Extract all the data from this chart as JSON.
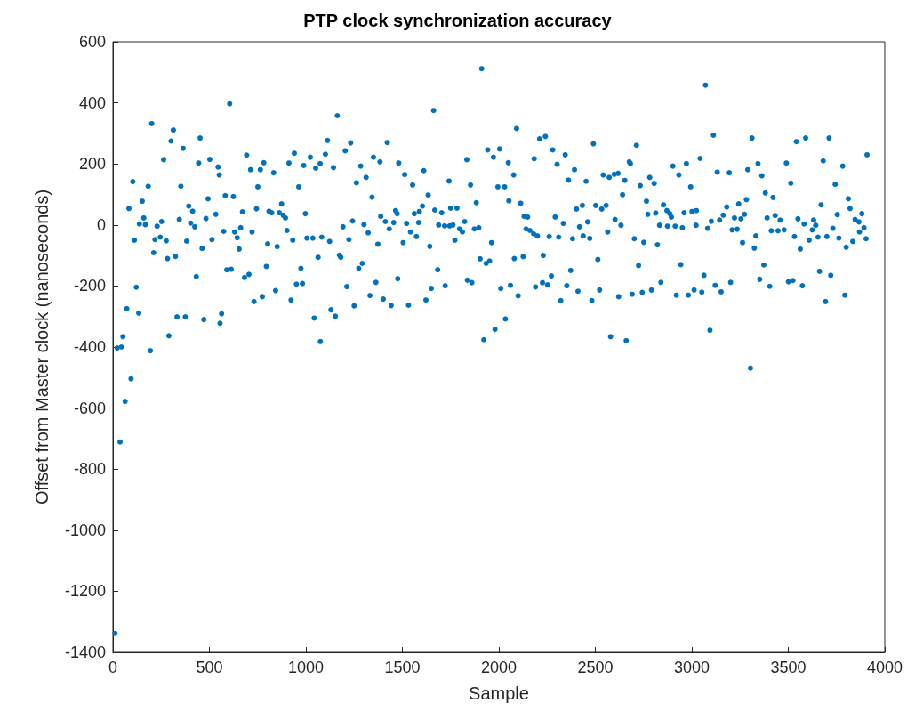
{
  "chart_data": {
    "type": "scatter",
    "title": "PTP clock synchronization accuracy",
    "xlabel": "Sample",
    "ylabel": "Offset from Master clock (nanoseconds)",
    "xlim": [
      0,
      4000
    ],
    "xticks": [
      0,
      500,
      1000,
      1500,
      2000,
      2500,
      3000,
      3500,
      4000
    ],
    "ylim": [
      -1400,
      600
    ],
    "yticks": [
      -1400,
      -1200,
      -1000,
      -800,
      -600,
      -400,
      -200,
      0,
      200,
      400,
      600
    ],
    "grid": false,
    "marker": "circle",
    "series": [
      {
        "color": "#0072bd",
        "x": [
          11,
          37,
          22,
          44,
          52,
          63,
          94,
          72,
          83,
          103,
          111,
          121,
          134,
          137,
          152,
          160,
          168,
          183,
          194,
          201,
          211,
          218,
          229,
          245,
          252,
          263,
          276,
          283,
          290,
          301,
          313,
          324,
          332,
          344,
          352,
          364,
          375,
          382,
          393,
          403,
          413,
          424,
          432,
          444,
          452,
          462,
          471,
          482,
          493,
          502,
          513,
          533,
          545,
          551,
          555,
          563,
          574,
          582,
          590,
          605,
          613,
          624,
          631,
          644,
          654,
          662,
          671,
          682,
          693,
          705,
          713,
          721,
          731,
          744,
          751,
          764,
          774,
          782,
          795,
          802,
          809,
          823,
          833,
          843,
          851,
          862,
          874,
          882,
          894,
          902,
          912,
          923,
          932,
          940,
          951,
          963,
          974,
          982,
          989,
          997,
          1005,
          1023,
          1036,
          1043,
          1051,
          1063,
          1074,
          1075,
          1082,
          1101,
          1112,
          1123,
          1130,
          1143,
          1153,
          1163,
          1174,
          1181,
          1192,
          1204,
          1212,
          1223,
          1232,
          1242,
          1250,
          1262,
          1274,
          1284,
          1292,
          1301,
          1312,
          1323,
          1332,
          1343,
          1350,
          1363,
          1373,
          1384,
          1388,
          1401,
          1412,
          1422,
          1432,
          1442,
          1455,
          1465,
          1473,
          1476,
          1481,
          1504,
          1512,
          1522,
          1532,
          1542,
          1553,
          1562,
          1573,
          1584,
          1588,
          1604,
          1611,
          1622,
          1634,
          1642,
          1650,
          1662,
          1668,
          1683,
          1688,
          1704,
          1719,
          1722,
          1742,
          1745,
          1750,
          1762,
          1772,
          1783,
          1796,
          1811,
          1823,
          1834,
          1837,
          1853,
          1860,
          1873,
          1883,
          1896,
          1903,
          1911,
          1922,
          1934,
          1942,
          1952,
          1962,
          1972,
          1980,
          1995,
          2004,
          2010,
          2030,
          2034,
          2049,
          2052,
          2060,
          2077,
          2080,
          2092,
          2100,
          2113,
          2126,
          2131,
          2141,
          2149,
          2161,
          2180,
          2183,
          2190,
          2200,
          2211,
          2226,
          2230,
          2241,
          2252,
          2261,
          2272,
          2279,
          2292,
          2302,
          2310,
          2321,
          2334,
          2344,
          2352,
          2361,
          2372,
          2382,
          2392,
          2402,
          2410,
          2418,
          2433,
          2437,
          2452,
          2460,
          2471,
          2482,
          2490,
          2502,
          2513,
          2522,
          2533,
          2541,
          2556,
          2564,
          2572,
          2579,
          2598,
          2602,
          2618,
          2621,
          2633,
          2641,
          2653,
          2660,
          2676,
          2682,
          2691,
          2702,
          2713,
          2724,
          2733,
          2743,
          2751,
          2765,
          2772,
          2782,
          2791,
          2805,
          2813,
          2822,
          2833,
          2840,
          2853,
          2871,
          2874,
          2886,
          2894,
          2902,
          2914,
          2920,
          2933,
          2943,
          2951,
          2960,
          2972,
          2982,
          2994,
          3001,
          3012,
          3022,
          3024,
          3043,
          3052,
          3063,
          3071,
          3082,
          3094,
          3101,
          3112,
          3121,
          3132,
          3144,
          3152,
          3163,
          3181,
          3194,
          3201,
          3209,
          3221,
          3235,
          3243,
          3255,
          3263,
          3273,
          3283,
          3290,
          3304,
          3312,
          3324,
          3332,
          3343,
          3352,
          3363,
          3373,
          3381,
          3390,
          3404,
          3412,
          3421,
          3432,
          3447,
          3458,
          3478,
          3490,
          3501,
          3513,
          3524,
          3532,
          3542,
          3550,
          3562,
          3573,
          3582,
          3590,
          3608,
          3624,
          3631,
          3642,
          3654,
          3662,
          3670,
          3681,
          3693,
          3700,
          3711,
          3720,
          3731,
          3743,
          3754,
          3762,
          3782,
          3793,
          3800,
          3811,
          3820,
          3834,
          3846,
          3866,
          3869,
          3881,
          3892,
          3903,
          3908
        ],
        "values": [
          -1338,
          -711,
          -403,
          -400,
          -366,
          -578,
          -504,
          -274,
          54,
          142,
          -50,
          -204,
          -289,
          3,
          78,
          23,
          1,
          127,
          -412,
          332,
          -91,
          -48,
          -4,
          -40,
          11,
          214,
          -52,
          -110,
          -363,
          275,
          311,
          -103,
          -301,
          18,
          127,
          251,
          -301,
          -53,
          62,
          6,
          45,
          -6,
          -169,
          203,
          285,
          -77,
          -310,
          21,
          86,
          215,
          -48,
          35,
          190,
          164,
          -322,
          -291,
          -21,
          96,
          -147,
          397,
          -145,
          93,
          -23,
          -42,
          -79,
          -9,
          43,
          -172,
          229,
          -162,
          181,
          -23,
          -251,
          53,
          125,
          181,
          -235,
          204,
          -136,
          -62,
          45,
          40,
          171,
          -215,
          -71,
          40,
          69,
          32,
          23,
          -18,
          203,
          -246,
          -50,
          235,
          -194,
          125,
          -142,
          -192,
          195,
          37,
          -43,
          222,
          -43,
          -305,
          186,
          -106,
          201,
          -382,
          -40,
          232,
          277,
          -54,
          -278,
          188,
          -299,
          358,
          -99,
          -106,
          -6,
          243,
          -202,
          -48,
          269,
          13,
          -265,
          138,
          -142,
          193,
          -126,
          1,
          156,
          -26,
          -231,
          91,
          222,
          -188,
          -63,
          207,
          28,
          -243,
          11,
          270,
          -13,
          -264,
          8,
          47,
          37,
          -176,
          203,
          -58,
          165,
          5,
          -263,
          -23,
          131,
          37,
          -38,
          8,
          44,
          62,
          178,
          -246,
          98,
          -70,
          -208,
          375,
          49,
          -147,
          0,
          40,
          -3,
          -199,
          144,
          -3,
          55,
          0,
          -50,
          55,
          -13,
          -23,
          11,
          214,
          -181,
          131,
          -189,
          -13,
          73,
          -9,
          -111,
          512,
          -376,
          -126,
          246,
          -118,
          -58,
          222,
          -342,
          125,
          249,
          -208,
          125,
          -308,
          204,
          79,
          -198,
          164,
          -110,
          316,
          -232,
          71,
          -104,
          28,
          -13,
          26,
          -18,
          -29,
          217,
          -203,
          -36,
          282,
          -189,
          -100,
          290,
          -196,
          -38,
          -167,
          246,
          26,
          199,
          -40,
          -248,
          5,
          230,
          -199,
          147,
          -149,
          -45,
          181,
          52,
          -217,
          -6,
          64,
          -36,
          143,
          10,
          -44,
          -248,
          266,
          64,
          -113,
          -213,
          52,
          164,
          64,
          -23,
          156,
          -366,
          166,
          18,
          169,
          -235,
          -1,
          99,
          146,
          -379,
          207,
          201,
          -227,
          -45,
          261,
          -133,
          129,
          -221,
          -57,
          78,
          35,
          156,
          -213,
          136,
          39,
          -65,
          -1,
          -188,
          66,
          47,
          -4,
          37,
          26,
          193,
          -4,
          -230,
          164,
          -130,
          -9,
          40,
          201,
          -230,
          125,
          44,
          -213,
          -1,
          47,
          218,
          -220,
          -165,
          458,
          -11,
          -345,
          12,
          294,
          -198,
          173,
          16,
          -219,
          32,
          59,
          171,
          -188,
          -16,
          23,
          -14,
          69,
          20,
          -58,
          35,
          83,
          181,
          -469,
          285,
          -76,
          -36,
          201,
          -178,
          161,
          -131,
          105,
          23,
          -201,
          -19,
          90,
          31,
          -19,
          16,
          -16,
          203,
          -186,
          137,
          -182,
          -38,
          273,
          20,
          -79,
          -199,
          3,
          285,
          -50,
          -16,
          16,
          -1,
          -40,
          -152,
          66,
          210,
          -251,
          -38,
          285,
          -165,
          -11,
          133,
          34,
          -43,
          193,
          -230,
          -73,
          86,
          54,
          -54,
          18,
          10,
          -23,
          37,
          -9,
          -45,
          230
        ]
      }
    ]
  }
}
